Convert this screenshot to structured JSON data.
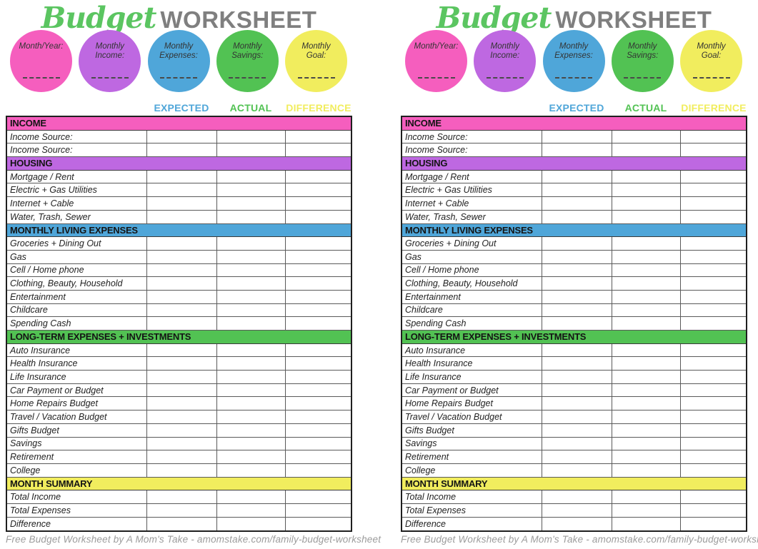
{
  "title": {
    "script_word": "Budget",
    "caps_word": "WORKSHEET"
  },
  "colors": {
    "pink": "#F55EBE",
    "purple": "#BE68E1",
    "blue": "#4FA6D9",
    "green": "#52C253",
    "yellow": "#F1ED5E",
    "title_script": "#5BC561",
    "title_caps": "#7F7F7F",
    "footer_gray": "#9C9C9C"
  },
  "circles": [
    {
      "label": "Month/Year:",
      "color_key": "pink"
    },
    {
      "label": "Monthly Income:",
      "color_key": "purple"
    },
    {
      "label": "Monthly Expenses:",
      "color_key": "blue"
    },
    {
      "label": "Monthly Savings:",
      "color_key": "green"
    },
    {
      "label": "Monthly Goal:",
      "color_key": "yellow"
    }
  ],
  "column_headers": [
    {
      "label": "EXPECTED",
      "color_key": "blue"
    },
    {
      "label": "ACTUAL",
      "color_key": "green"
    },
    {
      "label": "DIFFERENCE",
      "color_key": "yellow"
    }
  ],
  "sections": [
    {
      "name": "INCOME",
      "color_key": "pink",
      "rows": [
        "Income Source:",
        "Income Source:"
      ]
    },
    {
      "name": "HOUSING",
      "color_key": "purple",
      "rows": [
        "Mortgage / Rent",
        "Electric + Gas Utilities",
        "Internet + Cable",
        "Water, Trash, Sewer"
      ]
    },
    {
      "name": "MONTHLY LIVING EXPENSES",
      "color_key": "blue",
      "rows": [
        "Groceries + Dining Out",
        "Gas",
        "Cell / Home phone",
        "Clothing, Beauty, Household",
        "Entertainment",
        "Childcare",
        "Spending Cash"
      ]
    },
    {
      "name": "LONG-TERM EXPENSES + INVESTMENTS",
      "color_key": "green",
      "rows": [
        "Auto Insurance",
        "Health Insurance",
        "Life Insurance",
        "Car Payment or Budget",
        "Home Repairs Budget",
        "Travel / Vacation Budget",
        "Gifts Budget",
        "Savings",
        "Retirement",
        "College"
      ]
    },
    {
      "name": "MONTH SUMMARY",
      "color_key": "yellow",
      "rows": [
        "Total Income",
        "Total Expenses",
        "Difference"
      ]
    }
  ],
  "footer": "Free Budget Worksheet by A Mom's Take - amomstake.com/family-budget-worksheet",
  "page_count": 2
}
